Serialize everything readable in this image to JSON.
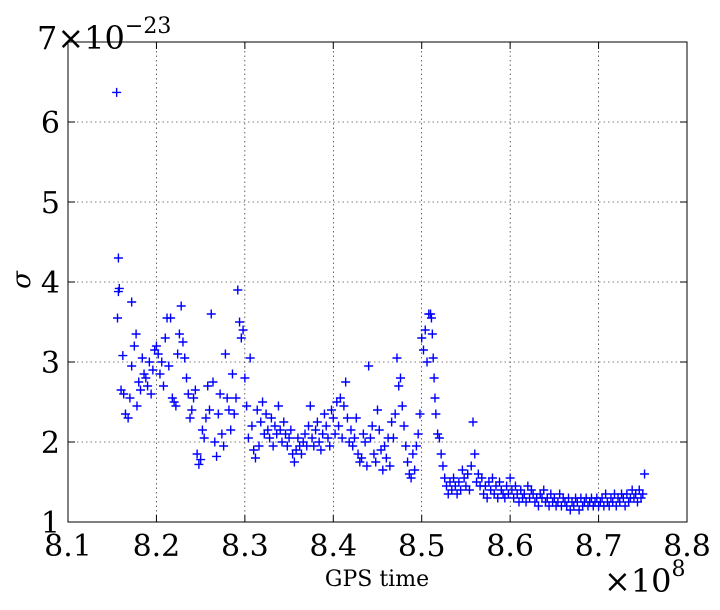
{
  "chart_data": {
    "type": "scatter",
    "title": "",
    "xlabel": "GPS time",
    "ylabel": "σ",
    "x_multiplier_label": "×10",
    "x_multiplier_exponent": "8",
    "y_multiplier_label": "7×10",
    "y_multiplier_exponent": "−23",
    "xlim": [
      8.1,
      8.8
    ],
    "ylim": [
      1,
      7
    ],
    "x_ticks": [
      "8.1",
      "8.2",
      "8.3",
      "8.4",
      "8.5",
      "8.6",
      "8.7",
      "8.8"
    ],
    "y_ticks": [
      "1",
      "2",
      "3",
      "4",
      "5",
      "6"
    ],
    "grid": true,
    "marker": "+",
    "color": "#0000ff",
    "points": [
      [
        8.155,
        6.37
      ],
      [
        8.157,
        4.3
      ],
      [
        8.158,
        3.92
      ],
      [
        8.157,
        3.88
      ],
      [
        8.156,
        3.55
      ],
      [
        8.162,
        3.08
      ],
      [
        8.16,
        2.65
      ],
      [
        8.163,
        2.6
      ],
      [
        8.165,
        2.35
      ],
      [
        8.168,
        2.3
      ],
      [
        8.17,
        2.55
      ],
      [
        8.172,
        2.95
      ],
      [
        8.172,
        3.75
      ],
      [
        8.175,
        3.2
      ],
      [
        8.177,
        3.35
      ],
      [
        8.178,
        2.45
      ],
      [
        8.18,
        2.75
      ],
      [
        8.182,
        2.65
      ],
      [
        8.184,
        3.05
      ],
      [
        8.186,
        2.85
      ],
      [
        8.188,
        2.8
      ],
      [
        8.19,
        2.7
      ],
      [
        8.192,
        3.0
      ],
      [
        8.194,
        2.6
      ],
      [
        8.196,
        2.9
      ],
      [
        8.198,
        3.15
      ],
      [
        8.2,
        3.2
      ],
      [
        8.202,
        3.1
      ],
      [
        8.204,
        2.85
      ],
      [
        8.206,
        3.0
      ],
      [
        8.208,
        2.7
      ],
      [
        8.21,
        3.3
      ],
      [
        8.212,
        3.55
      ],
      [
        8.214,
        2.95
      ],
      [
        8.216,
        3.55
      ],
      [
        8.218,
        2.55
      ],
      [
        8.22,
        2.5
      ],
      [
        8.222,
        2.45
      ],
      [
        8.224,
        3.1
      ],
      [
        8.226,
        3.35
      ],
      [
        8.228,
        3.7
      ],
      [
        8.23,
        3.25
      ],
      [
        8.232,
        3.05
      ],
      [
        8.234,
        2.8
      ],
      [
        8.236,
        2.6
      ],
      [
        8.238,
        2.3
      ],
      [
        8.24,
        2.4
      ],
      [
        8.242,
        2.55
      ],
      [
        8.244,
        2.65
      ],
      [
        8.246,
        1.85
      ],
      [
        8.248,
        1.72
      ],
      [
        8.25,
        1.78
      ],
      [
        8.252,
        2.15
      ],
      [
        8.254,
        2.05
      ],
      [
        8.256,
        2.3
      ],
      [
        8.258,
        2.7
      ],
      [
        8.26,
        2.4
      ],
      [
        8.262,
        3.6
      ],
      [
        8.264,
        2.75
      ],
      [
        8.266,
        2.0
      ],
      [
        8.268,
        1.82
      ],
      [
        8.27,
        2.35
      ],
      [
        8.272,
        2.6
      ],
      [
        8.274,
        2.1
      ],
      [
        8.276,
        1.95
      ],
      [
        8.278,
        3.1
      ],
      [
        8.28,
        2.55
      ],
      [
        8.282,
        2.4
      ],
      [
        8.284,
        2.15
      ],
      [
        8.286,
        2.85
      ],
      [
        8.288,
        2.35
      ],
      [
        8.29,
        2.55
      ],
      [
        8.292,
        3.9
      ],
      [
        8.294,
        3.5
      ],
      [
        8.296,
        3.3
      ],
      [
        8.298,
        3.4
      ],
      [
        8.3,
        2.8
      ],
      [
        8.302,
        2.45
      ],
      [
        8.304,
        2.05
      ],
      [
        8.306,
        3.05
      ],
      [
        8.308,
        2.2
      ],
      [
        8.31,
        1.9
      ],
      [
        8.312,
        1.8
      ],
      [
        8.314,
        2.4
      ],
      [
        8.316,
        1.95
      ],
      [
        8.318,
        2.25
      ],
      [
        8.32,
        2.5
      ],
      [
        8.322,
        2.1
      ],
      [
        8.324,
        2.35
      ],
      [
        8.326,
        2.15
      ],
      [
        8.328,
        2.05
      ],
      [
        8.33,
        2.3
      ],
      [
        8.332,
        1.95
      ],
      [
        8.334,
        2.2
      ],
      [
        8.336,
        2.1
      ],
      [
        8.338,
        2.45
      ],
      [
        8.34,
        2.15
      ],
      [
        8.342,
        2.0
      ],
      [
        8.344,
        2.25
      ],
      [
        8.346,
        2.1
      ],
      [
        8.348,
        1.95
      ],
      [
        8.35,
        2.05
      ],
      [
        8.352,
        2.15
      ],
      [
        8.354,
        1.85
      ],
      [
        8.356,
        1.75
      ],
      [
        8.358,
        1.9
      ],
      [
        8.36,
        2.05
      ],
      [
        8.362,
        1.95
      ],
      [
        8.364,
        1.85
      ],
      [
        8.366,
        2.0
      ],
      [
        8.368,
        2.1
      ],
      [
        8.37,
        1.95
      ],
      [
        8.372,
        2.2
      ],
      [
        8.374,
        2.45
      ],
      [
        8.376,
        2.05
      ],
      [
        8.378,
        1.95
      ],
      [
        8.38,
        2.15
      ],
      [
        8.382,
        2.25
      ],
      [
        8.384,
        2.0
      ],
      [
        8.386,
        1.9
      ],
      [
        8.388,
        2.1
      ],
      [
        8.39,
        2.35
      ],
      [
        8.392,
        2.2
      ],
      [
        8.394,
        2.05
      ],
      [
        8.396,
        1.95
      ],
      [
        8.398,
        2.4
      ],
      [
        8.4,
        2.3
      ],
      [
        8.402,
        2.1
      ],
      [
        8.404,
        2.5
      ],
      [
        8.406,
        2.2
      ],
      [
        8.408,
        2.55
      ],
      [
        8.41,
        2.05
      ],
      [
        8.412,
        2.45
      ],
      [
        8.414,
        2.75
      ],
      [
        8.416,
        2.3
      ],
      [
        8.418,
        2.0
      ],
      [
        8.42,
        2.15
      ],
      [
        8.422,
        1.95
      ],
      [
        8.424,
        2.05
      ],
      [
        8.426,
        2.3
      ],
      [
        8.428,
        1.85
      ],
      [
        8.43,
        1.75
      ],
      [
        8.432,
        1.8
      ],
      [
        8.434,
        2.1
      ],
      [
        8.436,
        2.0
      ],
      [
        8.438,
        1.7
      ],
      [
        8.44,
        2.95
      ],
      [
        8.442,
        2.05
      ],
      [
        8.444,
        2.2
      ],
      [
        8.446,
        1.85
      ],
      [
        8.448,
        1.75
      ],
      [
        8.45,
        2.4
      ],
      [
        8.452,
        2.15
      ],
      [
        8.454,
        1.9
      ],
      [
        8.456,
        1.65
      ],
      [
        8.458,
        1.95
      ],
      [
        8.46,
        1.8
      ],
      [
        8.462,
        2.05
      ],
      [
        8.464,
        1.7
      ],
      [
        8.466,
        2.25
      ],
      [
        8.468,
        2.05
      ],
      [
        8.47,
        2.35
      ],
      [
        8.472,
        3.05
      ],
      [
        8.474,
        2.7
      ],
      [
        8.476,
        2.8
      ],
      [
        8.478,
        2.45
      ],
      [
        8.48,
        2.2
      ],
      [
        8.482,
        1.95
      ],
      [
        8.484,
        1.75
      ],
      [
        8.486,
        1.6
      ],
      [
        8.488,
        1.55
      ],
      [
        8.49,
        1.85
      ],
      [
        8.492,
        1.65
      ],
      [
        8.494,
        1.95
      ],
      [
        8.496,
        2.1
      ],
      [
        8.498,
        2.35
      ],
      [
        8.5,
        3.3
      ],
      [
        8.502,
        3.15
      ],
      [
        8.504,
        3.4
      ],
      [
        8.506,
        3.0
      ],
      [
        8.508,
        3.6
      ],
      [
        8.51,
        3.6
      ],
      [
        8.511,
        3.55
      ],
      [
        8.512,
        3.35
      ],
      [
        8.513,
        3.05
      ],
      [
        8.514,
        2.8
      ],
      [
        8.515,
        2.55
      ],
      [
        8.516,
        2.35
      ],
      [
        8.518,
        2.1
      ],
      [
        8.52,
        2.05
      ],
      [
        8.522,
        1.85
      ],
      [
        8.524,
        1.7
      ],
      [
        8.526,
        1.55
      ],
      [
        8.528,
        1.45
      ],
      [
        8.53,
        1.35
      ],
      [
        8.532,
        1.5
      ],
      [
        8.534,
        1.4
      ],
      [
        8.536,
        1.55
      ],
      [
        8.538,
        1.45
      ],
      [
        8.54,
        1.35
      ],
      [
        8.542,
        1.5
      ],
      [
        8.544,
        1.4
      ],
      [
        8.546,
        1.65
      ],
      [
        8.548,
        1.55
      ],
      [
        8.55,
        1.45
      ],
      [
        8.552,
        1.6
      ],
      [
        8.554,
        1.4
      ],
      [
        8.556,
        1.7
      ],
      [
        8.558,
        2.25
      ],
      [
        8.56,
        1.85
      ],
      [
        8.562,
        1.5
      ],
      [
        8.564,
        1.6
      ],
      [
        8.566,
        1.45
      ],
      [
        8.568,
        1.55
      ],
      [
        8.57,
        1.35
      ],
      [
        8.572,
        1.45
      ],
      [
        8.574,
        1.3
      ],
      [
        8.576,
        1.5
      ],
      [
        8.578,
        1.4
      ],
      [
        8.58,
        1.55
      ],
      [
        8.582,
        1.35
      ],
      [
        8.584,
        1.45
      ],
      [
        8.586,
        1.3
      ],
      [
        8.588,
        1.5
      ],
      [
        8.59,
        1.4
      ],
      [
        8.592,
        1.35
      ],
      [
        8.594,
        1.3
      ],
      [
        8.596,
        1.45
      ],
      [
        8.598,
        1.35
      ],
      [
        8.6,
        1.55
      ],
      [
        8.602,
        1.4
      ],
      [
        8.604,
        1.3
      ],
      [
        8.606,
        1.45
      ],
      [
        8.608,
        1.35
      ],
      [
        8.61,
        1.25
      ],
      [
        8.612,
        1.4
      ],
      [
        8.614,
        1.3
      ],
      [
        8.616,
        1.35
      ],
      [
        8.618,
        1.25
      ],
      [
        8.62,
        1.45
      ],
      [
        8.622,
        1.3
      ],
      [
        8.624,
        1.4
      ],
      [
        8.626,
        1.35
      ],
      [
        8.628,
        1.25
      ],
      [
        8.63,
        1.3
      ],
      [
        8.632,
        1.2
      ],
      [
        8.634,
        1.35
      ],
      [
        8.636,
        1.3
      ],
      [
        8.638,
        1.4
      ],
      [
        8.64,
        1.25
      ],
      [
        8.642,
        1.3
      ],
      [
        8.644,
        1.2
      ],
      [
        8.646,
        1.35
      ],
      [
        8.648,
        1.25
      ],
      [
        8.65,
        1.3
      ],
      [
        8.652,
        1.2
      ],
      [
        8.654,
        1.25
      ],
      [
        8.656,
        1.35
      ],
      [
        8.658,
        1.2
      ],
      [
        8.66,
        1.3
      ],
      [
        8.662,
        1.25
      ],
      [
        8.664,
        1.2
      ],
      [
        8.666,
        1.3
      ],
      [
        8.668,
        1.15
      ],
      [
        8.67,
        1.25
      ],
      [
        8.672,
        1.2
      ],
      [
        8.674,
        1.3
      ],
      [
        8.676,
        1.25
      ],
      [
        8.678,
        1.15
      ],
      [
        8.68,
        1.3
      ],
      [
        8.682,
        1.2
      ],
      [
        8.684,
        1.25
      ],
      [
        8.686,
        1.3
      ],
      [
        8.688,
        1.2
      ],
      [
        8.69,
        1.25
      ],
      [
        8.692,
        1.3
      ],
      [
        8.694,
        1.2
      ],
      [
        8.696,
        1.25
      ],
      [
        8.698,
        1.3
      ],
      [
        8.7,
        1.2
      ],
      [
        8.702,
        1.25
      ],
      [
        8.704,
        1.3
      ],
      [
        8.706,
        1.2
      ],
      [
        8.708,
        1.35
      ],
      [
        8.71,
        1.25
      ],
      [
        8.712,
        1.2
      ],
      [
        8.714,
        1.3
      ],
      [
        8.716,
        1.25
      ],
      [
        8.718,
        1.35
      ],
      [
        8.72,
        1.2
      ],
      [
        8.722,
        1.3
      ],
      [
        8.724,
        1.25
      ],
      [
        8.726,
        1.35
      ],
      [
        8.728,
        1.3
      ],
      [
        8.73,
        1.2
      ],
      [
        8.732,
        1.35
      ],
      [
        8.734,
        1.25
      ],
      [
        8.736,
        1.3
      ],
      [
        8.738,
        1.4
      ],
      [
        8.74,
        1.3
      ],
      [
        8.742,
        1.35
      ],
      [
        8.744,
        1.25
      ],
      [
        8.746,
        1.4
      ],
      [
        8.748,
        1.3
      ],
      [
        8.75,
        1.35
      ],
      [
        8.752,
        1.6
      ]
    ]
  }
}
